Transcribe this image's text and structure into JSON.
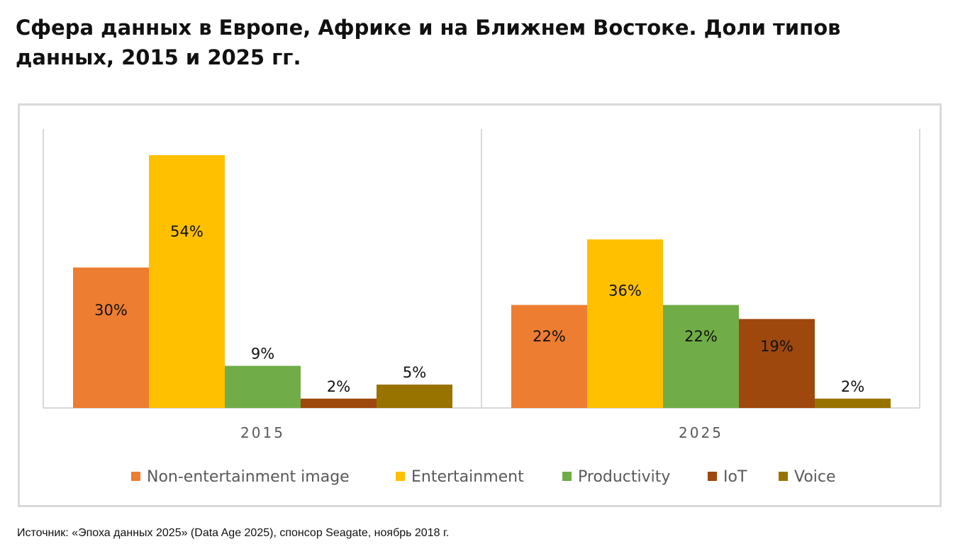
{
  "title": "Сфера данных в Европе, Африке и на Ближнем Востоке. Доли типов данных, 2015 и 2025 гг.",
  "source": "Источник: «Эпоха данных 2025» (Data Age 2025), спонсор Seagate, ноябрь 2018 г.",
  "chart_data": {
    "type": "bar",
    "categories": [
      "2015",
      "2025"
    ],
    "series": [
      {
        "name": "Non-entertainment image",
        "color": "#ED7D31",
        "values": [
          30,
          22
        ],
        "labels": [
          "30%",
          "22%"
        ]
      },
      {
        "name": "Entertainment",
        "color": "#FFC000",
        "values": [
          54,
          36
        ],
        "labels": [
          "54%",
          "36%"
        ]
      },
      {
        "name": "Productivity",
        "color": "#70AD47",
        "values": [
          9,
          22
        ],
        "labels": [
          "9%",
          "22%"
        ]
      },
      {
        "name": "IoT",
        "color": "#9E480E",
        "values": [
          2,
          19
        ],
        "labels": [
          "2%",
          "19%"
        ]
      },
      {
        "name": "Voice",
        "color": "#997300",
        "values": [
          5,
          2
        ],
        "labels": [
          "5%",
          "2%"
        ]
      }
    ],
    "legend_position": "bottom",
    "grid": false
  }
}
